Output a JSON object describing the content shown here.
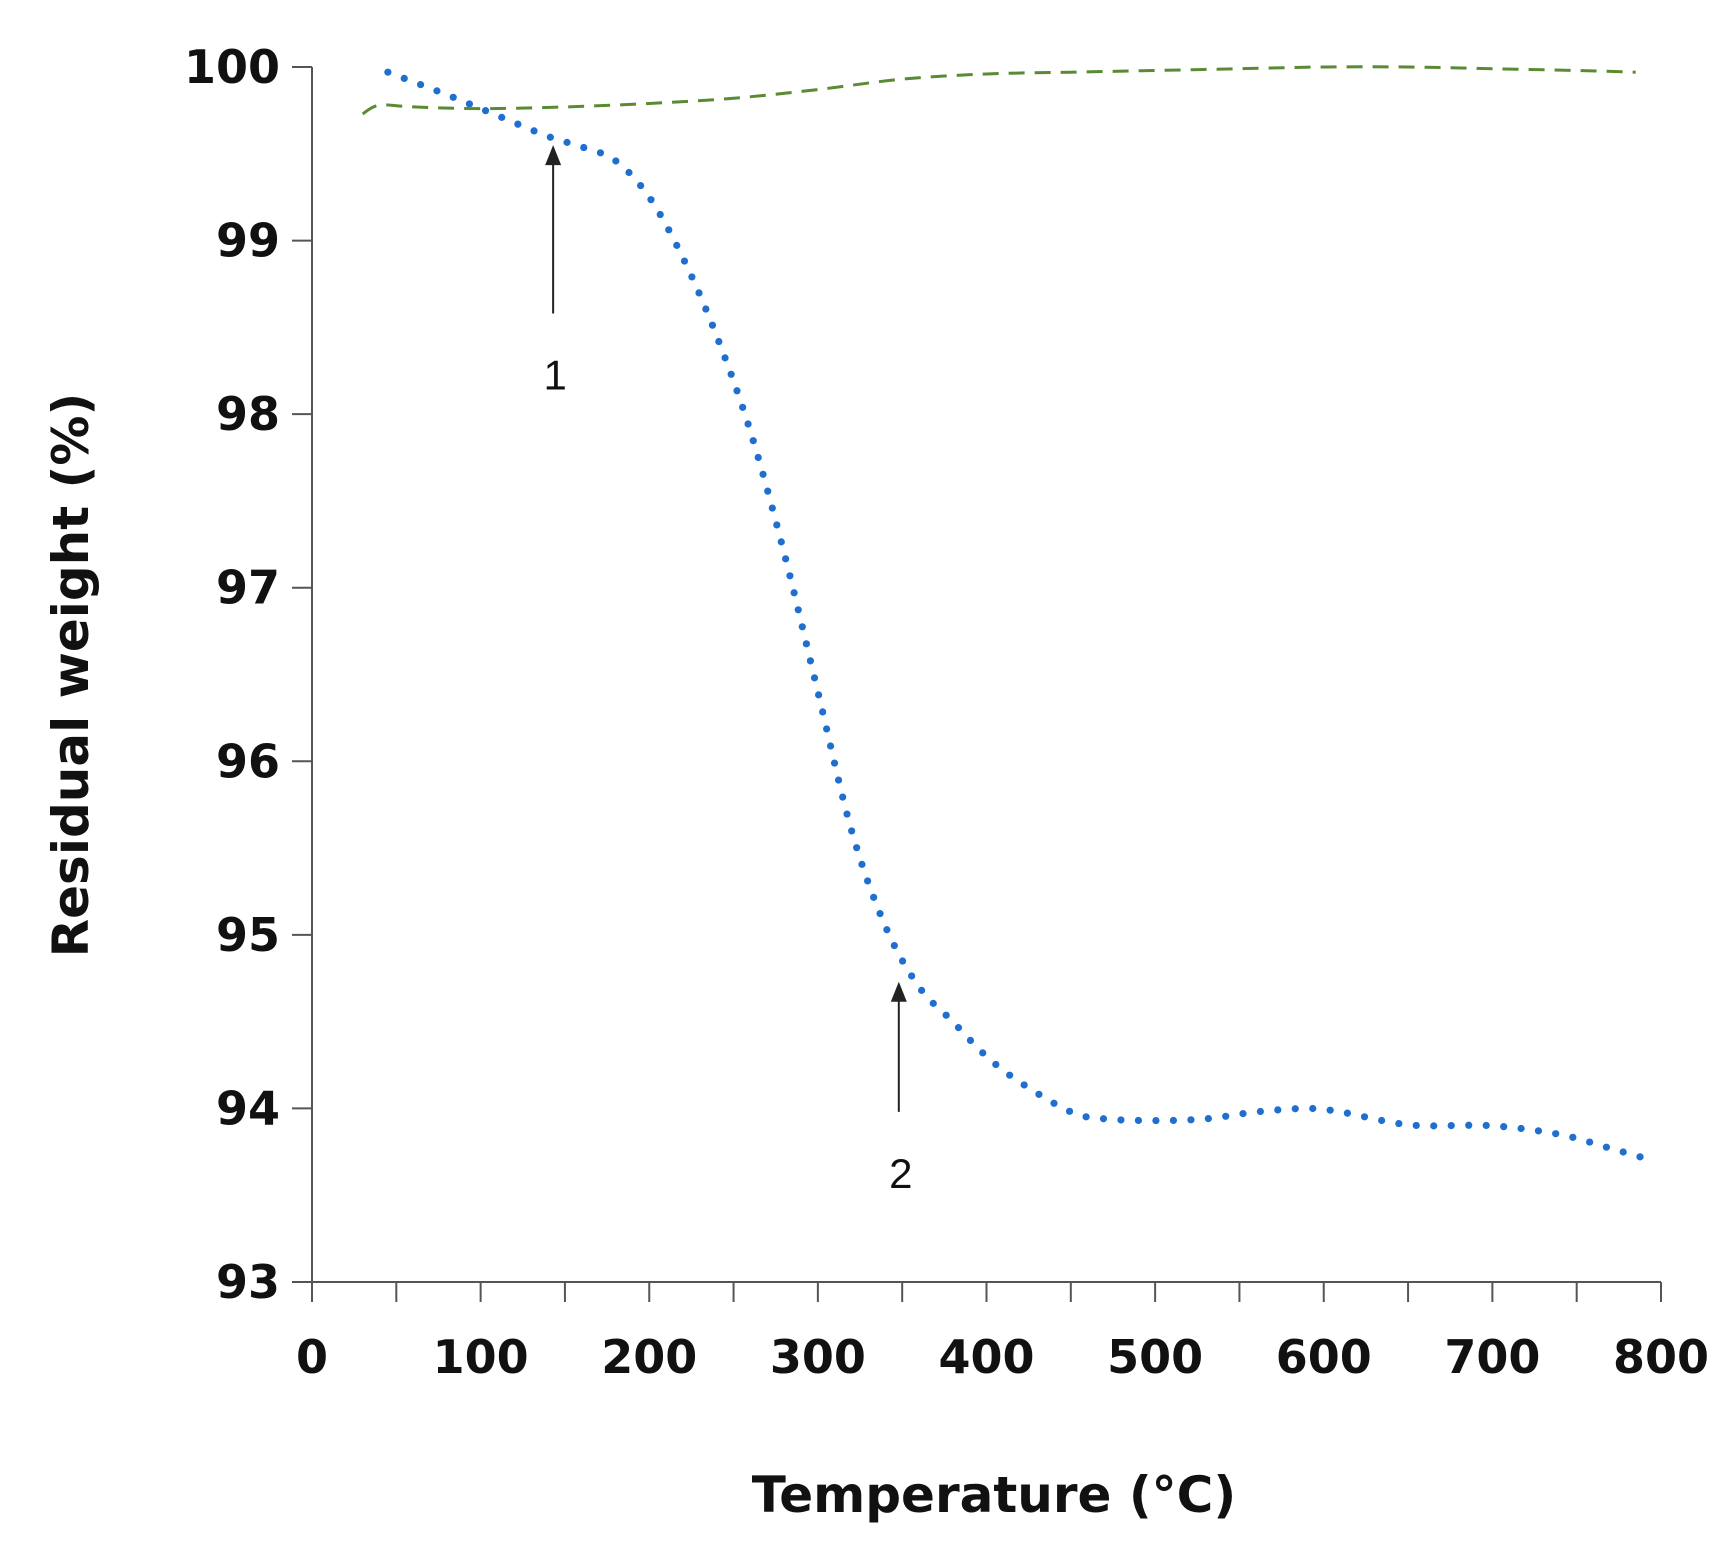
{
  "chart_data": {
    "type": "line",
    "title": "",
    "xlabel": "Temperature (°C)",
    "ylabel": "Residual weight (%)",
    "xlim": [
      0,
      800
    ],
    "ylim": [
      93,
      100
    ],
    "x_ticks": [
      "0",
      "100",
      "200",
      "300",
      "400",
      "500",
      "600",
      "700",
      "800"
    ],
    "y_ticks": [
      "93",
      "94",
      "95",
      "96",
      "97",
      "98",
      "99",
      "100"
    ],
    "grid": false,
    "legend": "none",
    "series": [
      {
        "style": "dotted",
        "color": "#1f6fd0",
        "points": [
          [
            45,
            99.97
          ],
          [
            80,
            99.84
          ],
          [
            110,
            99.72
          ],
          [
            140,
            99.6
          ],
          [
            160,
            99.54
          ],
          [
            180,
            99.46
          ],
          [
            200,
            99.25
          ],
          [
            220,
            98.9
          ],
          [
            240,
            98.45
          ],
          [
            260,
            97.9
          ],
          [
            280,
            97.2
          ],
          [
            300,
            96.4
          ],
          [
            320,
            95.6
          ],
          [
            340,
            95.05
          ],
          [
            360,
            94.7
          ],
          [
            380,
            94.5
          ],
          [
            400,
            94.3
          ],
          [
            420,
            94.15
          ],
          [
            450,
            93.98
          ],
          [
            470,
            93.94
          ],
          [
            500,
            93.93
          ],
          [
            530,
            93.94
          ],
          [
            560,
            93.98
          ],
          [
            590,
            94.0
          ],
          [
            610,
            93.98
          ],
          [
            640,
            93.92
          ],
          [
            660,
            93.9
          ],
          [
            700,
            93.9
          ],
          [
            740,
            93.85
          ],
          [
            770,
            93.77
          ],
          [
            795,
            93.7
          ]
        ]
      },
      {
        "style": "dashed",
        "color": "#5a8a32",
        "points": [
          [
            30,
            99.73
          ],
          [
            40,
            99.78
          ],
          [
            60,
            99.77
          ],
          [
            100,
            99.76
          ],
          [
            150,
            99.77
          ],
          [
            200,
            99.79
          ],
          [
            250,
            99.82
          ],
          [
            300,
            99.87
          ],
          [
            350,
            99.93
          ],
          [
            400,
            99.96
          ],
          [
            450,
            99.97
          ],
          [
            500,
            99.98
          ],
          [
            550,
            99.99
          ],
          [
            600,
            100.0
          ],
          [
            650,
            100.0
          ],
          [
            700,
            99.99
          ],
          [
            750,
            99.98
          ],
          [
            785,
            99.97
          ]
        ]
      }
    ],
    "annotations": [
      {
        "label": "1",
        "x": 143,
        "y_tip": 99.55,
        "y_tail": 98.58
      },
      {
        "label": "2",
        "x": 348,
        "y_tip": 94.73,
        "y_tail": 93.98
      }
    ]
  }
}
